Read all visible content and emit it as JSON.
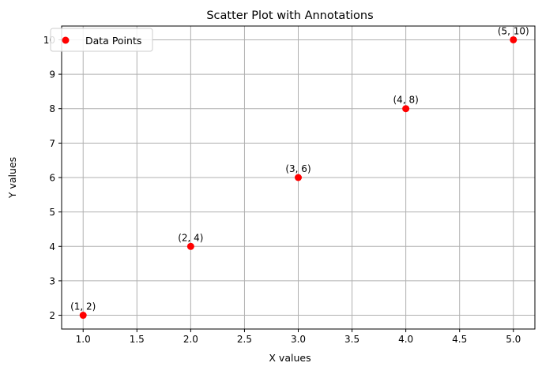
{
  "chart_data": {
    "type": "scatter",
    "title": "Scatter Plot with Annotations",
    "xlabel": "X values",
    "ylabel": "Y values",
    "xlim": [
      0.8,
      5.2
    ],
    "ylim": [
      1.6,
      10.4
    ],
    "xticks": [
      1.0,
      1.5,
      2.0,
      2.5,
      3.0,
      3.5,
      4.0,
      4.5,
      5.0
    ],
    "xtick_labels": [
      "1.0",
      "1.5",
      "2.0",
      "2.5",
      "3.0",
      "3.5",
      "4.0",
      "4.5",
      "5.0"
    ],
    "yticks": [
      2,
      3,
      4,
      5,
      6,
      7,
      8,
      9,
      10
    ],
    "ytick_labels": [
      "2",
      "3",
      "4",
      "5",
      "6",
      "7",
      "8",
      "9",
      "10"
    ],
    "grid": true,
    "legend_position": "upper-left",
    "series": [
      {
        "name": "Data Points",
        "color": "#ff0000",
        "x": [
          1,
          2,
          3,
          4,
          5
        ],
        "y": [
          2,
          4,
          6,
          8,
          10
        ]
      }
    ],
    "annotations": [
      "(1, 2)",
      "(2, 4)",
      "(3, 6)",
      "(4, 8)",
      "(5, 10)"
    ]
  }
}
